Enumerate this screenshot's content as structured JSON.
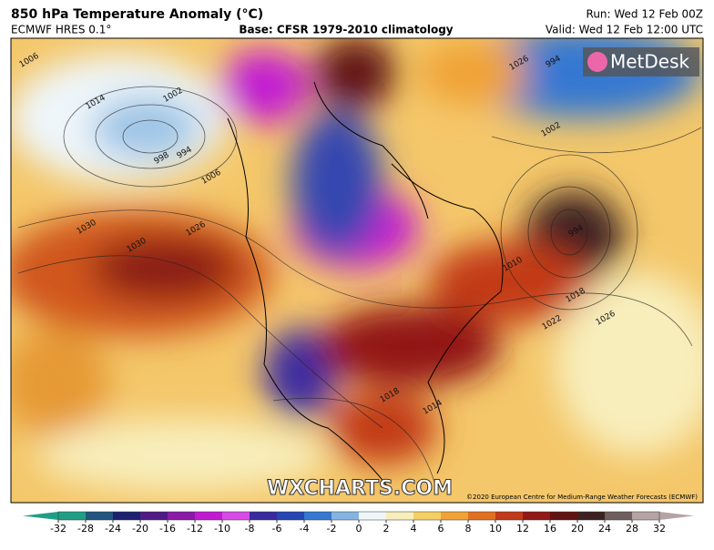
{
  "header": {
    "title": "850 hPa Temperature Anomaly (°C)",
    "model": "ECMWF HRES 0.1°",
    "base": "Base: CFSR 1979-2010 climatology",
    "run": "Run: Wed 12 Feb 00Z",
    "valid": "Valid: Wed 12 Feb 12:00 UTC"
  },
  "logo": "MetDesk",
  "watermark": "WXCHARTS.COM",
  "copyright": "©2020 European Centre for Medium-Range Weather Forecasts (ECMWF)",
  "isobar_labels": [
    "1006",
    "1014",
    "1002",
    "998",
    "994",
    "1006",
    "1030",
    "1026",
    "1030",
    "1026",
    "994",
    "1002",
    "994",
    "1010",
    "1018",
    "1022",
    "1026",
    "1018",
    "1014"
  ],
  "colorbar": {
    "ticks": [
      -32,
      -28,
      -24,
      -20,
      -16,
      -12,
      -10,
      -8,
      -6,
      -4,
      -2,
      0,
      2,
      4,
      6,
      8,
      10,
      12,
      16,
      20,
      24,
      28,
      32
    ],
    "colors": [
      "#1f9e86",
      "#22557f",
      "#1c2070",
      "#4f1a86",
      "#8a1ba8",
      "#c21ad2",
      "#d84ae6",
      "#3a2aa0",
      "#2546b4",
      "#3478d2",
      "#86b4e2",
      "#eef6fa",
      "#f8eebc",
      "#f6cf62",
      "#f0a234",
      "#e2701f",
      "#c23a18",
      "#931818",
      "#621212",
      "#3e2222",
      "#6e5e5e",
      "#b5a3a6"
    ]
  }
}
